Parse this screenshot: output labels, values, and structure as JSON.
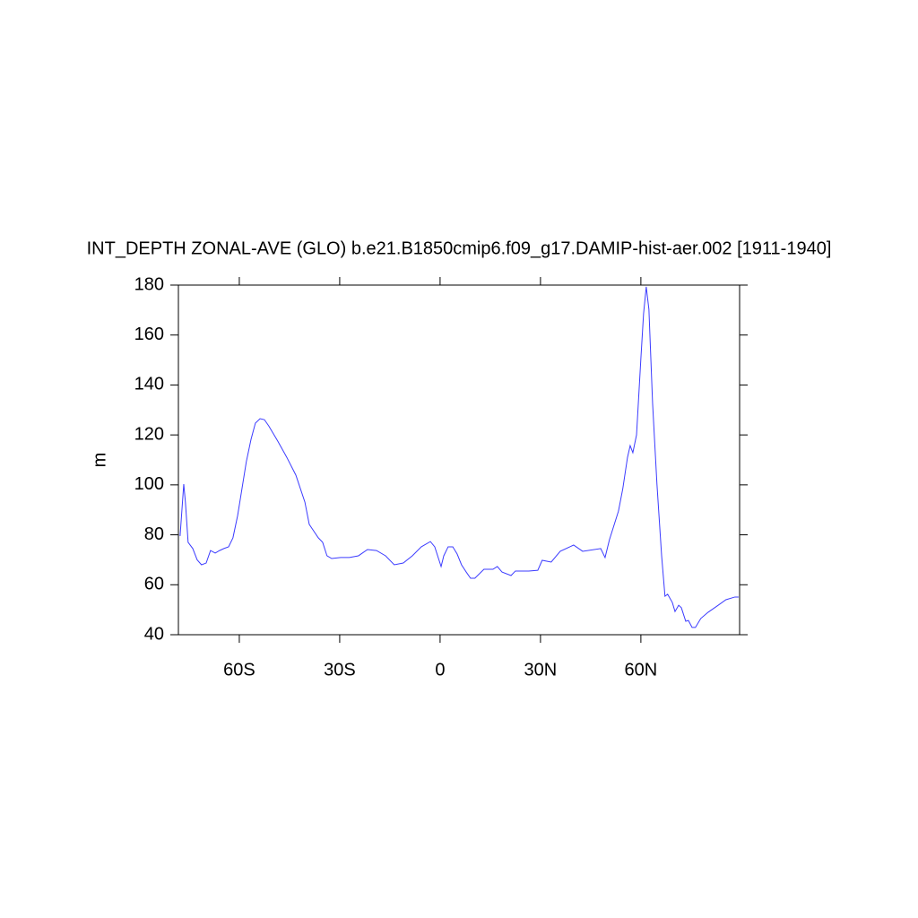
{
  "chart_data": {
    "type": "line",
    "title": "INT_DEPTH ZONAL-AVE (GLO) b.e21.B1850cmip6.f09_g17.DAMIP-hist-aer.002 [1911-1940]",
    "y_label": "m",
    "xlim": [
      -78.2,
      89.5
    ],
    "ylim": [
      40,
      180
    ],
    "xticks": [
      {
        "value": -60,
        "label": "60S"
      },
      {
        "value": -30,
        "label": "30S"
      },
      0,
      {
        "value": 30,
        "label": "30N"
      },
      {
        "value": 60,
        "label": "60N"
      }
    ],
    "yticks": [
      40,
      60,
      80,
      100,
      120,
      140,
      160,
      180
    ],
    "grid": false,
    "series": [
      {
        "color": "#3b3bff",
        "x": [
          -77.7,
          -76.6,
          -76.1,
          -75.3,
          -73.9,
          -72.6,
          -71.3,
          -69.9,
          -68.6,
          -67.2,
          -65.9,
          -64.6,
          -63.2,
          -61.9,
          -60.5,
          -59.2,
          -57.9,
          -56.5,
          -55.2,
          -53.8,
          -52.5,
          -51.2,
          -48.5,
          -45.8,
          -43.1,
          -40.4,
          -39.1,
          -37.8,
          -36.4,
          -35.1,
          -33.8,
          -32.4,
          -29.7,
          -27.1,
          -24.4,
          -21.7,
          -19,
          -16.3,
          -13.7,
          -11,
          -8.3,
          -5.6,
          -2.9,
          -1.6,
          -0.3,
          0.3,
          1.1,
          2.4,
          3.8,
          5.1,
          6.4,
          7.8,
          9.1,
          10.4,
          13.1,
          15.8,
          17.1,
          18.5,
          21.2,
          22.5,
          26.5,
          29.2,
          30.5,
          33.2,
          35.9,
          39.9,
          42.6,
          48,
          49.3,
          50.6,
          53.3,
          54.6,
          56,
          56.8,
          57.6,
          58.7,
          60,
          60.8,
          61.6,
          62.4,
          63.5,
          64.8,
          66.2,
          67.2,
          68,
          69.4,
          70.2,
          71.3,
          72.1,
          73.4,
          74.2,
          75.3,
          76.3,
          77.9,
          80.1,
          82.8,
          85.4,
          88.1,
          89.2
        ],
        "values": [
          79.5,
          100.3,
          93,
          77,
          74.5,
          70,
          68,
          68.7,
          73.7,
          72.7,
          73.7,
          74.5,
          75.2,
          78.8,
          87.7,
          98.5,
          109.3,
          118.2,
          124.7,
          126.5,
          126.1,
          123.6,
          117.5,
          111,
          103.9,
          93.1,
          84.2,
          81.6,
          78.8,
          77,
          71.6,
          70.5,
          70.9,
          70.9,
          71.6,
          74.1,
          73.7,
          71.6,
          68,
          68.7,
          71.6,
          75.2,
          77.3,
          75.2,
          69.8,
          67.3,
          71.6,
          75.2,
          75.2,
          72.3,
          68,
          65.1,
          62.6,
          62.6,
          66.2,
          66.2,
          67.3,
          65.1,
          63.7,
          65.5,
          65.5,
          65.8,
          69.8,
          69.1,
          73.4,
          75.9,
          73.4,
          74.5,
          70.9,
          78,
          89.5,
          98.5,
          111,
          115.7,
          112.9,
          120,
          150.6,
          168.5,
          179.3,
          170.3,
          132.6,
          100.3,
          71.6,
          55.4,
          56.2,
          52.9,
          49.3,
          51.8,
          50.8,
          45.4,
          45.7,
          42.9,
          42.9,
          46.5,
          49,
          51.5,
          54,
          55.1,
          55.1
        ]
      }
    ]
  }
}
